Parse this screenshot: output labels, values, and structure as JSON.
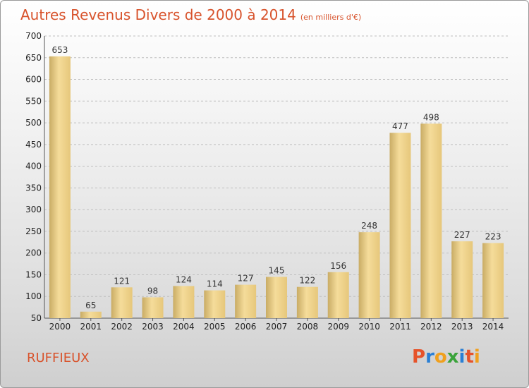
{
  "header": {
    "title": "Autres Revenus Divers de 2000 à 2014",
    "unit": "(en milliers d'€)"
  },
  "footer": {
    "commune": "RUFFIEUX",
    "brand": [
      "P",
      "r",
      "o",
      "x",
      "i",
      "t",
      "i"
    ],
    "brand_colors": [
      "#e6532a",
      "#2a7fd4",
      "#f0a01e",
      "#3aa33a",
      "#2a7fd4",
      "#e6532a",
      "#f0a01e"
    ]
  },
  "colors": {
    "title": "#d8532c",
    "bar_light": "#f7e0a0",
    "bar_dark": "#c9ac65",
    "grid": "#bfbfbf"
  },
  "chart_data": {
    "type": "bar",
    "title": "Autres Revenus Divers de 2000 à 2014",
    "subtitle": "(en milliers d'€)",
    "xlabel": "",
    "ylabel": "",
    "categories": [
      "2000",
      "2001",
      "2002",
      "2003",
      "2004",
      "2005",
      "2006",
      "2007",
      "2008",
      "2009",
      "2010",
      "2011",
      "2012",
      "2013",
      "2014"
    ],
    "values": [
      653,
      65,
      121,
      98,
      124,
      114,
      127,
      145,
      122,
      156,
      248,
      477,
      498,
      227,
      223
    ],
    "ylim": [
      50,
      700
    ],
    "yticks": [
      50,
      100,
      150,
      200,
      250,
      300,
      350,
      400,
      450,
      500,
      550,
      600,
      650,
      700
    ],
    "grid": "horizontal dashed",
    "legend": "none"
  }
}
